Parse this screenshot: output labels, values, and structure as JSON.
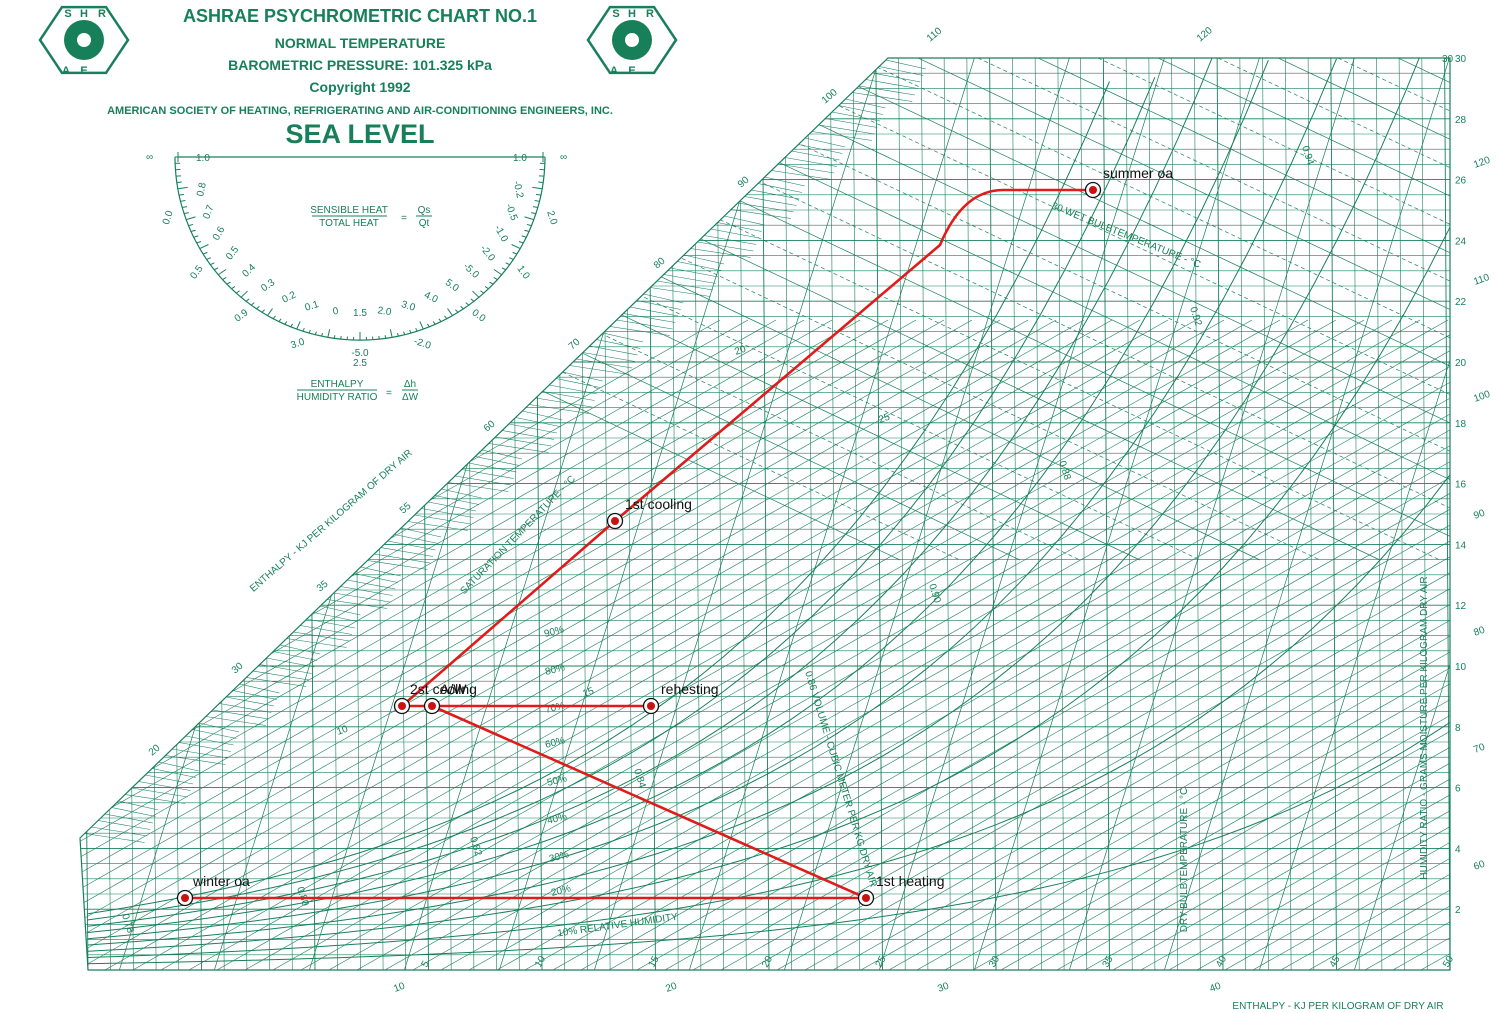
{
  "header": {
    "title": "ASHRAE PSYCHROMETRIC CHART NO.1",
    "line2": "NORMAL TEMPERATURE",
    "line3": "BAROMETRIC PRESSURE: 101.325 kPa",
    "line4": "Copyright 1992",
    "line5": "AMERICAN SOCIETY OF HEATING, REFRIGERATING AND AIR-CONDITIONING ENGINEERS, INC.",
    "line6": "SEA LEVEL",
    "logo_letters": [
      "S",
      "H",
      "R",
      "A",
      "E"
    ]
  },
  "protractor": {
    "sens_num": "SENSIBLE HEAT",
    "sens_den": "TOTAL HEAT",
    "sens_eq": "=",
    "sens_rnum": "Qs",
    "sens_rden": "Qt",
    "enth_num": "ENTHALPY",
    "enth_den": "HUMIDITY RATIO",
    "enth_rnum": "Δh",
    "enth_rden": "ΔW",
    "inf_left": "∞",
    "inf_right": "∞",
    "top_left": "1.0",
    "top_right": "1.0",
    "left_scale": [
      "0.8",
      "0.7",
      "0.6",
      "0.5",
      "0.4",
      "0.3",
      "0.2",
      "0.1",
      "0"
    ],
    "right_scale": [
      "1.5",
      "2.0",
      "3.0",
      "4.0",
      "5.0",
      "-5.0",
      "-2.0",
      "-1.0",
      "-0.5",
      "-0.2"
    ],
    "outer_left": [
      "0.0",
      "0.5",
      "0.9",
      "3.0"
    ],
    "outer_right": [
      "-5.0",
      "-2.0",
      "0.0",
      "1.0",
      "2.0"
    ],
    "bottom": "2.5"
  },
  "axis_labels": {
    "dry_bulb": "DRY BULBTEMPERATURE - °C",
    "humidity_ratio": "HUMIDITY RATIO - GRAMS MOISTURE PER KILOGRAM DRY AIR",
    "enthalpy_bottom": "ENTHALPY - KJ PER KILOGRAM OF DRY AIR",
    "enthalpy_left": "ENTHALPY - KJ PER KILOGRAM OF DRY AIR",
    "saturation": "SATURATION TEMPERATURE - °C",
    "wet_bulb": "30 WET BULBTEMPERATURE - °C",
    "volume": "0.86 VOLUME - CUBIC METER PER KG DRY AIR",
    "rh10": "10% RELATIVE HUMIDITY"
  },
  "chart_data": {
    "type": "scatter",
    "title": "ASHRAE PSYCHROMETRIC CHART NO.1",
    "xlabel": "DRY BULBTEMPERATURE - °C",
    "ylabel": "HUMIDITY RATIO - GRAMS MOISTURE PER KILOGRAM DRY AIR",
    "xlim": [
      -10,
      50
    ],
    "ylim": [
      0,
      30
    ],
    "dry_bulb_ticks": [
      "5",
      "10",
      "15",
      "20",
      "25",
      "30",
      "35",
      "40",
      "45",
      "50"
    ],
    "humidity_ticks": [
      "2",
      "4",
      "6",
      "8",
      "10",
      "12",
      "14",
      "16",
      "18",
      "20",
      "22",
      "24",
      "26",
      "28",
      "30"
    ],
    "enthalpy_right_ticks": [
      "60",
      "70",
      "80",
      "90",
      "100",
      "110",
      "120"
    ],
    "enthalpy_left_ticks": [
      "20",
      "30",
      "35",
      "55",
      "60",
      "70",
      "80",
      "90",
      "100",
      "110",
      "120"
    ],
    "enthalpy_bottom_ticks": [
      "10",
      "20",
      "30",
      "40"
    ],
    "rh_labels": [
      "90%",
      "80%",
      "70%",
      "60%",
      "50%",
      "40%",
      "30%",
      "20%"
    ],
    "wet_bulb_labels": [
      "10",
      "15",
      "20",
      "25"
    ],
    "volume_labels": [
      "0.78",
      "0.80",
      "0.82",
      "0.84",
      "0.88",
      "0.90",
      "0.92",
      "0.94"
    ],
    "points": [
      {
        "label": "summer oa",
        "x": 34.5,
        "y": 25.3
      },
      {
        "label": "1st cooling",
        "x": 19.0,
        "y": 14.5
      },
      {
        "label": "2st cooling",
        "x": 12.5,
        "y": 8.9
      },
      {
        "label": "A/W",
        "x": 13.4,
        "y": 8.9
      },
      {
        "label": "rehesting",
        "x": 20.0,
        "y": 8.9
      },
      {
        "label": "winter oa",
        "x": -5.0,
        "y": 2.6
      },
      {
        "label": "1st heating",
        "x": 26.5,
        "y": 2.6
      }
    ],
    "process_path": [
      {
        "x": 34.5,
        "y": 25.3
      },
      {
        "x": 29.0,
        "y": 25.3
      },
      {
        "x": 25.0,
        "y": 22.5
      },
      {
        "x": 19.0,
        "y": 14.5
      },
      {
        "x": 12.5,
        "y": 8.9
      },
      {
        "x": 13.4,
        "y": 8.9
      },
      {
        "x": 20.0,
        "y": 8.9
      }
    ],
    "process_path_2": [
      {
        "x": 13.4,
        "y": 8.9
      },
      {
        "x": 26.5,
        "y": 2.6
      },
      {
        "x": -5.0,
        "y": 2.6
      }
    ],
    "colors": {
      "grid": "#17805a",
      "process": "#e01b1b",
      "point": "#cc1111"
    }
  }
}
